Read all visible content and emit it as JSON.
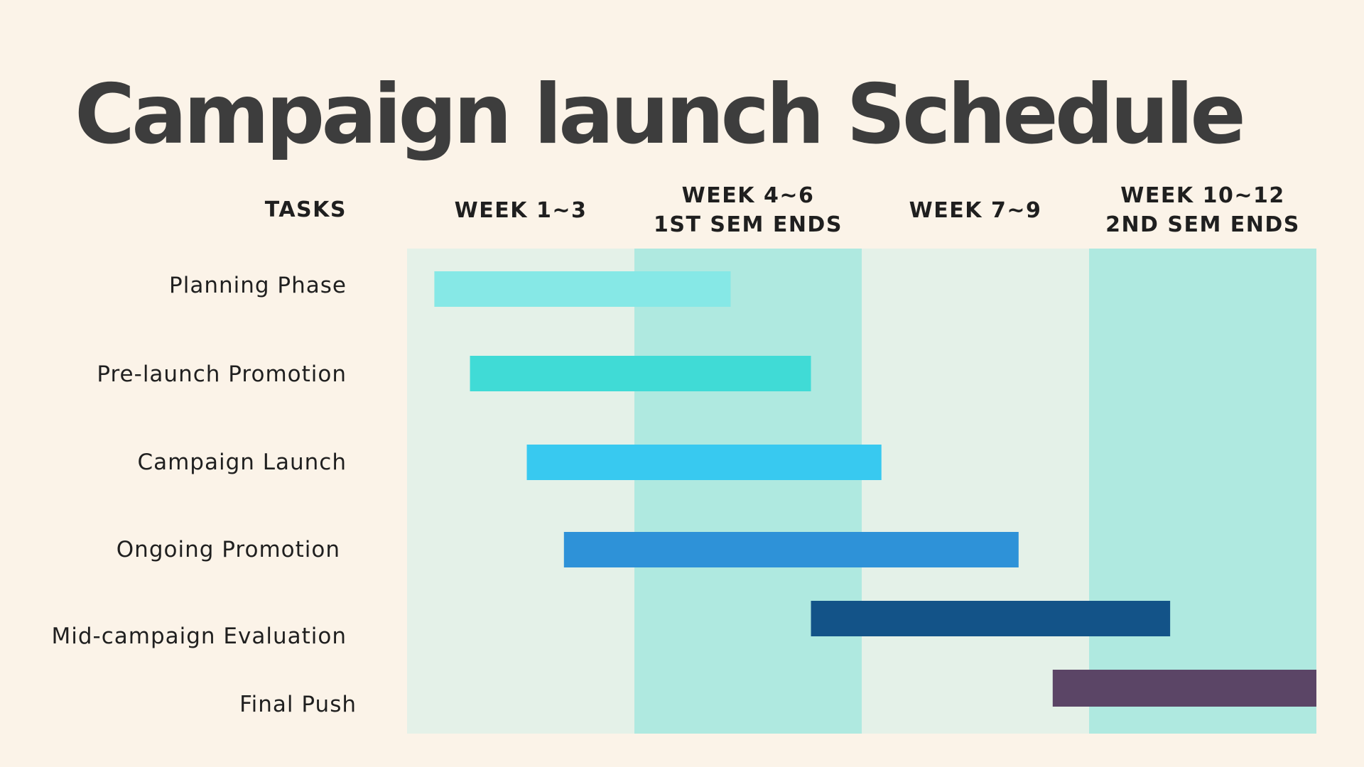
{
  "title": "Campaign launch Schedule",
  "colors": {
    "background": "#fbf3e8",
    "band_light": "#e4f1e8",
    "band_teal": "#afe9e0",
    "title": "#3d3d3d"
  },
  "chart_data": {
    "type": "gantt",
    "title": "Campaign launch Schedule",
    "tasks_header": "TASKS",
    "x_unit": "week",
    "xlim": [
      0,
      12
    ],
    "periods": [
      {
        "lines": [
          "WEEK 1~3"
        ],
        "start": 0,
        "end": 3
      },
      {
        "lines": [
          "WEEK 4~6",
          "1ST SEM ENDS"
        ],
        "start": 3,
        "end": 6
      },
      {
        "lines": [
          "WEEK 7~9"
        ],
        "start": 6,
        "end": 9
      },
      {
        "lines": [
          "WEEK 10~12",
          "2ND SEM ENDS"
        ],
        "start": 9,
        "end": 12
      }
    ],
    "tasks": [
      {
        "name": "Planning Phase",
        "start": 0.36,
        "end": 4.27,
        "color": "#86e8e6"
      },
      {
        "name": "Pre-launch Promotion",
        "start": 0.83,
        "end": 5.33,
        "color": "#40dbd6"
      },
      {
        "name": "Campaign Launch",
        "start": 1.58,
        "end": 6.26,
        "color": "#38c9f0"
      },
      {
        "name": "Ongoing Promotion",
        "start": 2.07,
        "end": 8.07,
        "color": "#2e92d8"
      },
      {
        "name": "Mid-campaign Evaluation",
        "start": 5.33,
        "end": 10.07,
        "color": "#135388"
      },
      {
        "name": "Final Push",
        "start": 8.52,
        "end": 12.0,
        "color": "#5b4566"
      }
    ]
  }
}
